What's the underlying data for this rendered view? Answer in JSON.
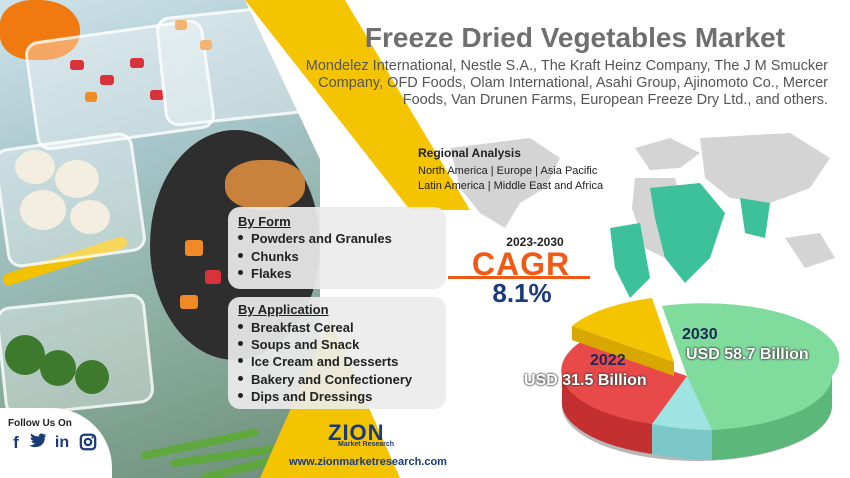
{
  "header": {
    "title": "Freeze Dried Vegetables Market",
    "companies": "Mondelez International, Nestle S.A., The Kraft Heinz Company, The J M Smucker Company, OFD Foods, Olam International, Asahi Group, Ajinomoto Co., Mercer Foods, Van Drunen Farms, European Freeze Dry Ltd., and others."
  },
  "regional": {
    "title": "Regional Analysis",
    "line1": "North America | Europe | Asia Pacific",
    "line2": "Latin America | Middle East and Africa"
  },
  "cagr": {
    "years": "2023-2030",
    "label": "CAGR",
    "value": "8.1%"
  },
  "by_form": {
    "heading": "By Form",
    "items": [
      "Powders and Granules",
      "Chunks",
      "Flakes"
    ]
  },
  "by_application": {
    "heading": "By Application",
    "items": [
      "Breakfast Cereal",
      "Soups and Snack",
      "Ice Cream and Desserts",
      "Bakery and Confectionery",
      "Dips and Dressings"
    ]
  },
  "market_size": {
    "year_2022": "2022",
    "value_2022": "USD 31.5 Billion",
    "year_2030": "2030",
    "value_2030": "USD 58.7 Billion"
  },
  "footer": {
    "follow_label": "Follow Us On",
    "social": [
      "facebook-icon",
      "twitter-icon",
      "linkedin-icon",
      "instagram-icon"
    ],
    "logo_main": "ZION",
    "logo_sub": "Market Research",
    "url": "www.zionmarketresearch.com"
  },
  "colors": {
    "accent_yellow": "#f5c400",
    "cagr_orange": "#f05a14",
    "navy": "#1a3a7a",
    "map_green": "#3cc19a",
    "pie_red": "#e84a4a",
    "pie_green": "#7fdc9c",
    "pie_cyan": "#9fe3e3",
    "pie_yellow": "#f5c400"
  }
}
